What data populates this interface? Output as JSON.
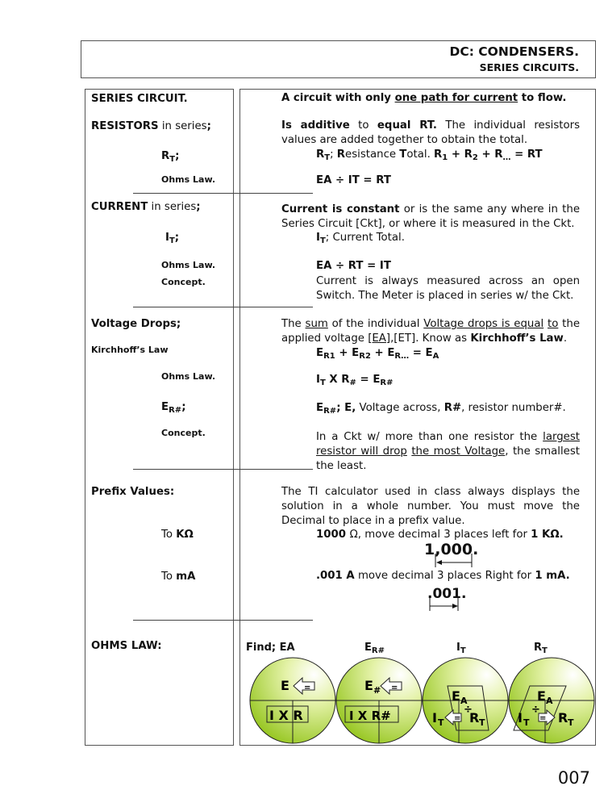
{
  "header": {
    "title": "DC: CONDENSERS.",
    "subtitle": "SERIES CIRCUITS."
  },
  "page_number": "007",
  "left": [
    {
      "runs": [
        {
          "t": "SERIES CIRCUIT.",
          "b": 1
        }
      ]
    },
    {
      "runs": [
        {
          "t": "RESISTORS",
          "b": 1
        },
        {
          "t": " in series"
        },
        {
          "t": ";",
          "b": 1
        }
      ]
    },
    {
      "runs": [
        {
          "t": "R",
          "b": 1
        },
        {
          "t": "T",
          "b": 1,
          "sub": 1
        },
        {
          "t": ";",
          "b": 1
        }
      ]
    },
    {
      "runs": [
        {
          "t": "Ohms Law."
        }
      ]
    },
    {
      "runs": [
        {
          "t": "CURRENT",
          "b": 1
        },
        {
          "t": " in series"
        },
        {
          "t": ";",
          "b": 1
        }
      ]
    },
    {
      "runs": [
        {
          "t": "I",
          "b": 1
        },
        {
          "t": "T",
          "b": 1,
          "sub": 1
        },
        {
          "t": ";",
          "b": 1
        }
      ]
    },
    {
      "runs": [
        {
          "t": "Ohms Law."
        }
      ]
    },
    {
      "runs": [
        {
          "t": "Concept."
        }
      ]
    },
    {
      "runs": [
        {
          "t": "Voltage Drops;",
          "b": 1
        }
      ]
    },
    {
      "runs": [
        {
          "t": "Kirchhoff’s Law"
        }
      ]
    },
    {
      "runs": [
        {
          "t": "Ohms Law."
        }
      ]
    },
    {
      "runs": [
        {
          "t": "E",
          "b": 1
        },
        {
          "t": "R#",
          "b": 1,
          "sub": 1
        },
        {
          "t": ";",
          "b": 1
        }
      ]
    },
    {
      "runs": [
        {
          "t": "Concept."
        }
      ]
    },
    {
      "runs": [
        {
          "t": "Prefix Values:",
          "b": 1
        }
      ]
    },
    {
      "runs": [
        {
          "t": "To "
        },
        {
          "t": "KΩ",
          "b": 1
        }
      ]
    },
    {
      "runs": [
        {
          "t": "To "
        },
        {
          "t": "mA",
          "b": 1
        }
      ]
    },
    {
      "runs": [
        {
          "t": "OHMS LAW:",
          "b": 1
        }
      ]
    }
  ],
  "right": [
    {
      "runs": [
        {
          "t": "A circuit with only ",
          "b": 1
        },
        {
          "t": "one path for current",
          "b": 1,
          "u": 1
        },
        {
          "t": " to flow.",
          "b": 1
        }
      ]
    },
    {
      "runs": [
        {
          "t": "Is additive",
          "b": 1
        },
        {
          "t": " to "
        },
        {
          "t": "equal RT.",
          "b": 1
        },
        {
          "t": " The individual resistors values are added together to obtain the total."
        }
      ]
    },
    {
      "runs": [
        {
          "t": "R",
          "b": 1
        },
        {
          "t": "T",
          "b": 1,
          "sub": 1
        },
        {
          "t": "; "
        },
        {
          "t": "R",
          "b": 1
        },
        {
          "t": "esistance "
        },
        {
          "t": "T",
          "b": 1
        },
        {
          "t": "otal.  "
        },
        {
          "t": "R",
          "b": 1
        },
        {
          "t": "1",
          "b": 1,
          "sub": 1
        },
        {
          "t": " + R",
          "b": 1
        },
        {
          "t": "2",
          "b": 1,
          "sub": 1
        },
        {
          "t": " + R",
          "b": 1
        },
        {
          "t": "…",
          "b": 1,
          "sub": 1
        },
        {
          "t": " = RT",
          "b": 1
        }
      ]
    },
    {
      "runs": [
        {
          "t": "EA ÷ IT = RT",
          "b": 1
        }
      ]
    },
    {
      "runs": [
        {
          "t": "Current is constant",
          "b": 1
        },
        {
          "t": " or is the same any where in the Series Circuit [Ckt], or where it is measured in the Ckt."
        }
      ]
    },
    {
      "runs": [
        {
          "t": "I",
          "b": 1
        },
        {
          "t": "T",
          "b": 1,
          "sub": 1
        },
        {
          "t": "; Current Total."
        }
      ]
    },
    {
      "runs": [
        {
          "t": "EA ÷ RT = IT",
          "b": 1
        }
      ]
    },
    {
      "runs": [
        {
          "t": "Current is always measured across an open Switch.  The Meter is placed in series w/ the Ckt."
        }
      ]
    },
    {
      "runs": [
        {
          "t": "The "
        },
        {
          "t": "sum",
          "u": 1
        },
        {
          "t": " of the individual "
        },
        {
          "t": "Voltage drops is equal",
          "u": 1
        },
        {
          "t": " "
        },
        {
          "t": "to",
          "u": 1
        },
        {
          "t": " the applied voltage "
        },
        {
          "t": "[EA]",
          "u": 1
        },
        {
          "t": ",[ET].  Know as "
        },
        {
          "t": "Kirchhoff’s Law",
          "b": 1
        },
        {
          "t": "."
        }
      ]
    },
    {
      "runs": [
        {
          "t": "E",
          "b": 1
        },
        {
          "t": "R1",
          "b": 1,
          "sub": 1
        },
        {
          "t": " + E",
          "b": 1
        },
        {
          "t": "R2",
          "b": 1,
          "sub": 1
        },
        {
          "t": " + E",
          "b": 1
        },
        {
          "t": "R…",
          "b": 1,
          "sub": 1
        },
        {
          "t": " = E",
          "b": 1
        },
        {
          "t": "A",
          "b": 1,
          "sub": 1
        }
      ]
    },
    {
      "runs": [
        {
          "t": "I",
          "b": 1
        },
        {
          "t": "T",
          "b": 1,
          "sub": 1
        },
        {
          "t": " X R",
          "b": 1
        },
        {
          "t": "#",
          "b": 1,
          "sub": 1
        },
        {
          "t": " = E",
          "b": 1
        },
        {
          "t": "R#",
          "b": 1,
          "sub": 1
        }
      ]
    },
    {
      "runs": [
        {
          "t": "E",
          "b": 1
        },
        {
          "t": "R#",
          "b": 1,
          "sub": 1
        },
        {
          "t": ";  E,",
          "b": 1
        },
        {
          "t": " Voltage across, "
        },
        {
          "t": "R#",
          "b": 1
        },
        {
          "t": ", resistor number#."
        }
      ]
    },
    {
      "runs": [
        {
          "t": "In a Ckt w/ more than one resistor the "
        },
        {
          "t": "largest resistor will drop",
          "u": 1
        },
        {
          "t": " "
        },
        {
          "t": "the most Voltage",
          "u": 1
        },
        {
          "t": ", the smallest the least."
        }
      ]
    },
    {
      "runs": [
        {
          "t": "The TI calculator used in class always displays the solution in a whole number.  You must move the Decimal to place in a prefix value."
        }
      ]
    },
    {
      "runs": [
        {
          "t": "1000 ",
          "b": 1
        },
        {
          "t": "Ω,  move decimal 3 places left for "
        },
        {
          "t": "1 KΩ.",
          "b": 1
        }
      ]
    },
    {
      "runs": [
        {
          "t": "1,000."
        }
      ]
    },
    {
      "runs": [
        {
          "t": ".001 A",
          "b": 1
        },
        {
          "t": " move decimal 3 places Right for "
        },
        {
          "t": "1 mA.",
          "b": 1
        }
      ]
    },
    {
      "runs": [
        {
          "t": ".001."
        }
      ]
    }
  ],
  "ohms_law": [
    {
      "label": "Find; EA",
      "top": "E",
      "bottom": "I X R"
    },
    {
      "label": "ER#",
      "top": "E#",
      "bottom": "I X R#"
    },
    {
      "label": "IT",
      "top": "EA",
      "bottom_left": "IT",
      "bottom_right": "RT",
      "op": "÷"
    },
    {
      "label": "RT",
      "top": "EA",
      "bottom_left": "IT",
      "bottom_right": "RT",
      "op": "÷"
    }
  ],
  "colors": {
    "circle_green": "#9cc81a",
    "border": "#555555"
  }
}
